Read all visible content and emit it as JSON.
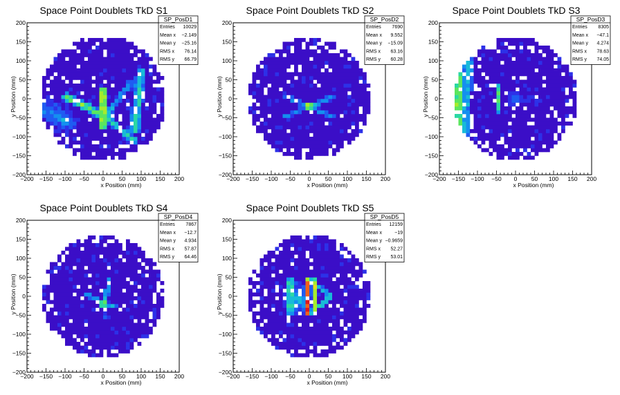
{
  "colors": {
    "background": "#ffffff",
    "frame": "#000000",
    "palette": [
      "#3b0ec7",
      "#2d31e8",
      "#1f5cf2",
      "#1490ef",
      "#18bbd8",
      "#2bd8a4",
      "#5be65e",
      "#a6ec2c",
      "#e6dd1c",
      "#f7a81b",
      "#f2611a",
      "#e0151b"
    ]
  },
  "chart_data": [
    {
      "type": "heatmap",
      "title": "Space Point Doublets TkD S1",
      "xlabel": "x Position (mm)",
      "ylabel": "y Position (mm)",
      "xlim": [
        -200,
        200
      ],
      "ylim": [
        -200,
        200
      ],
      "xticks": [
        "−200",
        "−150",
        "−100",
        "−50",
        "0",
        "50",
        "100",
        "150",
        "200"
      ],
      "yticks": [
        "−200",
        "−150",
        "−100",
        "−50",
        "0",
        "50",
        "100",
        "150",
        "200"
      ],
      "fill_radius": 165,
      "grid": false,
      "stats": {
        "name": "SP_PosD1",
        "rows": [
          [
            "Entries",
            "10029"
          ],
          [
            "Mean x",
            "−2.149"
          ],
          [
            "Mean y",
            "−25.16"
          ],
          [
            "RMS x",
            "76.14"
          ],
          [
            "RMS y",
            "66.79"
          ]
        ]
      },
      "features": [
        {
          "kind": "band",
          "x1": 0,
          "y1": -80,
          "x2": 0,
          "y2": 30,
          "w": 6,
          "level": 10
        },
        {
          "kind": "band",
          "x1": -95,
          "y1": 5,
          "x2": 10,
          "y2": -50,
          "w": 12,
          "level": 7
        },
        {
          "kind": "band",
          "x1": 10,
          "y1": -50,
          "x2": 80,
          "y2": -110,
          "w": 10,
          "level": 6
        },
        {
          "kind": "band",
          "x1": 5,
          "y1": -50,
          "x2": 70,
          "y2": 40,
          "w": 8,
          "level": 4
        },
        {
          "kind": "band",
          "x1": 82,
          "y1": -80,
          "x2": 100,
          "y2": 70,
          "w": 14,
          "level": 6
        },
        {
          "kind": "band",
          "x1": -165,
          "y1": -30,
          "x2": -90,
          "y2": -60,
          "w": 25,
          "level": 4
        },
        {
          "kind": "blob",
          "x": -130,
          "y": -30,
          "r": 45,
          "level": 3
        }
      ]
    },
    {
      "type": "heatmap",
      "title": "Space Point Doublets TkD S2",
      "xlabel": "x Position (mm)",
      "ylabel": "y Position (mm)",
      "xlim": [
        -200,
        200
      ],
      "ylim": [
        -200,
        200
      ],
      "xticks": [
        "−200",
        "−150",
        "−100",
        "−50",
        "0",
        "50",
        "100",
        "150",
        "200"
      ],
      "yticks": [
        "−200",
        "−150",
        "−100",
        "−50",
        "0",
        "50",
        "100",
        "150",
        "200"
      ],
      "fill_radius": 160,
      "grid": false,
      "stats": {
        "name": "SP_PosD2",
        "rows": [
          [
            "Entries",
            "7690"
          ],
          [
            "Mean x",
            "9.552"
          ],
          [
            "Mean y",
            "−15.09"
          ],
          [
            "RMS x",
            "63.16"
          ],
          [
            "RMS y",
            "60.28"
          ]
        ]
      },
      "features": [
        {
          "kind": "blob",
          "x": 0,
          "y": -18,
          "r": 12,
          "level": 10
        },
        {
          "kind": "band",
          "x1": -60,
          "y1": 5,
          "x2": 60,
          "y2": -45,
          "w": 7,
          "level": 4
        },
        {
          "kind": "band",
          "x1": -60,
          "y1": -45,
          "x2": 60,
          "y2": 5,
          "w": 7,
          "level": 4
        }
      ]
    },
    {
      "type": "heatmap",
      "title": "Space Point Doublets TkD S3",
      "xlabel": "x Position (mm)",
      "ylabel": "y Position (mm)",
      "xlim": [
        -200,
        200
      ],
      "ylim": [
        -200,
        200
      ],
      "xticks": [
        "−200",
        "−150",
        "−100",
        "−50",
        "0",
        "50",
        "100",
        "150",
        "200"
      ],
      "yticks": [
        "−200",
        "−150",
        "−100",
        "−50",
        "0",
        "50",
        "100",
        "150",
        "200"
      ],
      "fill_radius": 162,
      "grid": false,
      "stats": {
        "name": "SP_PosD3",
        "rows": [
          [
            "Entries",
            "8305"
          ],
          [
            "Mean x",
            "−47.1"
          ],
          [
            "Mean y",
            "4.274"
          ],
          [
            "RMS x",
            "78.63"
          ],
          [
            "RMS y",
            "74.05"
          ]
        ]
      },
      "features": [
        {
          "kind": "band",
          "x1": -150,
          "y1": -100,
          "x2": -150,
          "y2": 60,
          "w": 10,
          "level": 9
        },
        {
          "kind": "band",
          "x1": -135,
          "y1": -110,
          "x2": -125,
          "y2": 100,
          "w": 14,
          "level": 5
        },
        {
          "kind": "band",
          "x1": -45,
          "y1": -30,
          "x2": -45,
          "y2": 30,
          "w": 6,
          "level": 6
        },
        {
          "kind": "blob",
          "x": 0,
          "y": 0,
          "r": 25,
          "level": 3
        }
      ]
    },
    {
      "type": "heatmap",
      "title": "Space Point Doublets TkD S4",
      "xlabel": "x Position (mm)",
      "ylabel": "y Position (mm)",
      "xlim": [
        -200,
        200
      ],
      "ylim": [
        -200,
        200
      ],
      "xticks": [
        "−200",
        "−150",
        "−100",
        "−50",
        "0",
        "50",
        "100",
        "150",
        "200"
      ],
      "yticks": [
        "−200",
        "−150",
        "−100",
        "−50",
        "0",
        "50",
        "100",
        "150",
        "200"
      ],
      "fill_radius": 160,
      "grid": false,
      "stats": {
        "name": "SP_PosD4",
        "rows": [
          [
            "Entries",
            "7867"
          ],
          [
            "Mean x",
            "−12.7"
          ],
          [
            "Mean y",
            "4.934"
          ],
          [
            "RMS x",
            "57.87"
          ],
          [
            "RMS y",
            "64.46"
          ]
        ]
      },
      "features": [
        {
          "kind": "blob",
          "x": 0,
          "y": -18,
          "r": 12,
          "level": 9
        },
        {
          "kind": "band",
          "x1": 5,
          "y1": -18,
          "x2": 15,
          "y2": 40,
          "w": 7,
          "level": 5
        },
        {
          "kind": "band",
          "x1": -40,
          "y1": 5,
          "x2": 0,
          "y2": -18,
          "w": 7,
          "level": 4
        },
        {
          "kind": "band",
          "x1": 0,
          "y1": -18,
          "x2": 30,
          "y2": -25,
          "w": 7,
          "level": 4
        },
        {
          "kind": "band",
          "x1": 0,
          "y1": -18,
          "x2": 5,
          "y2": -50,
          "w": 6,
          "level": 3
        }
      ]
    },
    {
      "type": "heatmap",
      "title": "Space Point Doublets TkD S5",
      "xlabel": "x Position (mm)",
      "ylabel": "y Position (mm)",
      "xlim": [
        -200,
        200
      ],
      "ylim": [
        -200,
        200
      ],
      "xticks": [
        "−200",
        "−150",
        "−100",
        "−50",
        "0",
        "50",
        "100",
        "150",
        "200"
      ],
      "yticks": [
        "−200",
        "−150",
        "−100",
        "−50",
        "0",
        "50",
        "100",
        "150",
        "200"
      ],
      "fill_radius": 162,
      "grid": false,
      "stats": {
        "name": "SP_PosD5",
        "rows": [
          [
            "Entries",
            "12159"
          ],
          [
            "Mean x",
            "−19"
          ],
          [
            "Mean y",
            "−0.9659"
          ],
          [
            "RMS x",
            "52.27"
          ],
          [
            "RMS y",
            "53.01"
          ]
        ]
      },
      "features": [
        {
          "kind": "blob",
          "x": -25,
          "y": -5,
          "r": 45,
          "level": 5
        },
        {
          "kind": "band",
          "x1": -50,
          "y1": -40,
          "x2": -50,
          "y2": 40,
          "w": 12,
          "level": 7
        },
        {
          "kind": "band",
          "x1": -5,
          "y1": -45,
          "x2": -5,
          "y2": 40,
          "w": 6,
          "level": 11
        },
        {
          "kind": "band",
          "x1": 15,
          "y1": -45,
          "x2": 15,
          "y2": 40,
          "w": 6,
          "level": 8
        },
        {
          "kind": "band",
          "x1": 0,
          "y1": -45,
          "x2": 60,
          "y2": 0,
          "w": 7,
          "level": 6
        },
        {
          "kind": "band",
          "x1": 0,
          "y1": 45,
          "x2": 60,
          "y2": 0,
          "w": 7,
          "level": 5
        }
      ]
    }
  ]
}
